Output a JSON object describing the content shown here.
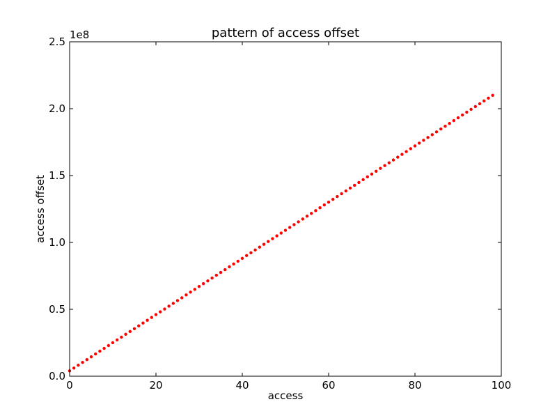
{
  "chart_data": {
    "type": "scatter",
    "title": "pattern of access offset",
    "xlabel": "access",
    "ylabel": "access offset",
    "y_offset_label": "1e8",
    "xlim": [
      0,
      100
    ],
    "ylim": [
      0,
      250000000
    ],
    "x_ticks": [
      0,
      20,
      40,
      60,
      80,
      100
    ],
    "x_tick_labels": [
      "0",
      "20",
      "40",
      "60",
      "80",
      "100"
    ],
    "y_ticks": [
      0,
      50000000,
      100000000,
      150000000,
      200000000,
      250000000
    ],
    "y_tick_labels": [
      "0.0",
      "0.5",
      "1.0",
      "1.5",
      "2.0",
      "2.5"
    ],
    "grid": false,
    "legend": "none",
    "marker_color": "#ff0000",
    "series": [
      {
        "x": [
          0,
          1,
          2,
          3,
          4,
          5,
          6,
          7,
          8,
          9,
          10,
          11,
          12,
          13,
          14,
          15,
          16,
          17,
          18,
          19,
          20,
          21,
          22,
          23,
          24,
          25,
          26,
          27,
          28,
          29,
          30,
          31,
          32,
          33,
          34,
          35,
          36,
          37,
          38,
          39,
          40,
          41,
          42,
          43,
          44,
          45,
          46,
          47,
          48,
          49,
          50,
          51,
          52,
          53,
          54,
          55,
          56,
          57,
          58,
          59,
          60,
          61,
          62,
          63,
          64,
          65,
          66,
          67,
          68,
          69,
          70,
          71,
          72,
          73,
          74,
          75,
          76,
          77,
          78,
          79,
          80,
          81,
          82,
          83,
          84,
          85,
          86,
          87,
          88,
          89,
          90,
          91,
          92,
          93,
          94,
          95,
          96,
          97,
          98
        ],
        "y": [
          4000000,
          6102041,
          8204082,
          10306122,
          12408163,
          14510204,
          16612245,
          18714286,
          20816327,
          22918367,
          25020408,
          27122449,
          29224490,
          31326531,
          33428571,
          35530612,
          37632653,
          39734694,
          41836735,
          43938776,
          46040816,
          48142857,
          50244898,
          52346939,
          54448980,
          56551020,
          58653061,
          60755102,
          62857143,
          64959184,
          67061224,
          69163265,
          71265306,
          73367347,
          75469388,
          77571429,
          79673469,
          81775510,
          83877551,
          85979592,
          88081633,
          90183673,
          92285714,
          94387755,
          96489796,
          98591837,
          100693878,
          102795918,
          104897959,
          107000000,
          109102041,
          111204082,
          113306122,
          115408163,
          117510204,
          119612245,
          121714286,
          123816327,
          125918367,
          128020408,
          130122449,
          132224490,
          134326531,
          136428571,
          138530612,
          140632653,
          142734694,
          144836735,
          146938776,
          149040816,
          151142857,
          153244898,
          155346939,
          157448980,
          159551020,
          161653061,
          163755102,
          165857143,
          167959184,
          170061224,
          172163265,
          174265306,
          176367347,
          178469388,
          180571429,
          182673469,
          184775510,
          186877551,
          188979592,
          191081633,
          193183673,
          195285714,
          197387755,
          199489796,
          201591837,
          203693878,
          205795918,
          207897959,
          210000000
        ]
      }
    ]
  }
}
